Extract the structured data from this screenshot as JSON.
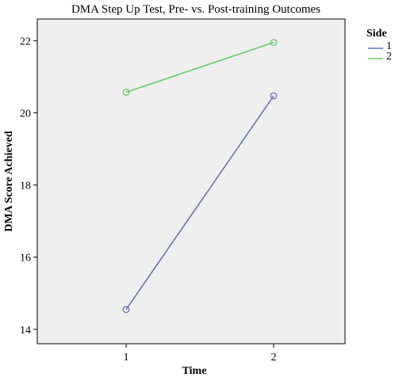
{
  "chart_data": {
    "type": "line",
    "title": "DMA Step Up Test, Pre- vs. Post-training Outcomes",
    "xlabel": "Time",
    "ylabel": "DMA Score Achieved",
    "x": [
      "1",
      "2"
    ],
    "y_ticks": [
      "14",
      "16",
      "18",
      "20",
      "22"
    ],
    "ylim": [
      13.6,
      22.6
    ],
    "grid": false,
    "legend": {
      "title": "Side",
      "placement": "right-outside-top"
    },
    "series": [
      {
        "name": "1",
        "values": [
          14.55,
          20.47
        ],
        "color": "#6673b8"
      },
      {
        "name": "2",
        "values": [
          20.57,
          21.95
        ],
        "color": "#6cc96a"
      }
    ],
    "plot_background": "#efefef",
    "marker": "open-circle"
  }
}
